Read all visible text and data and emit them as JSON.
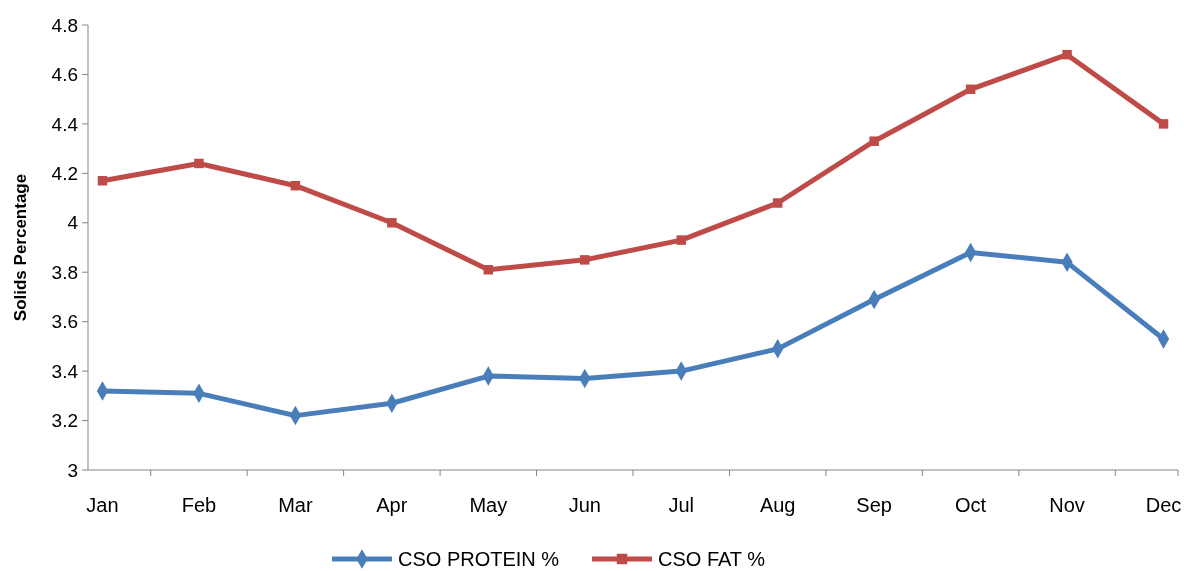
{
  "chart_data": {
    "type": "line",
    "ylabel": "Solids Percentage",
    "categories": [
      "Jan",
      "Feb",
      "Mar",
      "Apr",
      "May",
      "Jun",
      "Jul",
      "Aug",
      "Sep",
      "Oct",
      "Nov",
      "Dec"
    ],
    "ylim": [
      3,
      4.8
    ],
    "yticks": [
      3,
      3.2,
      3.4,
      3.6,
      3.8,
      4,
      4.2,
      4.4,
      4.6,
      4.8
    ],
    "grid": false,
    "legend": "bottom",
    "line_style": "solid",
    "series": [
      {
        "name": "CSO PROTEIN %",
        "color": "#4a7ebb",
        "marker": "diamond",
        "values": [
          3.32,
          3.31,
          3.22,
          3.27,
          3.38,
          3.37,
          3.4,
          3.49,
          3.69,
          3.88,
          3.84,
          3.53
        ]
      },
      {
        "name": "CSO FAT %",
        "color": "#be4b48",
        "marker": "square",
        "values": [
          4.17,
          4.24,
          4.15,
          4.0,
          3.81,
          3.85,
          3.93,
          4.08,
          4.33,
          4.54,
          4.68,
          4.4
        ]
      }
    ]
  }
}
